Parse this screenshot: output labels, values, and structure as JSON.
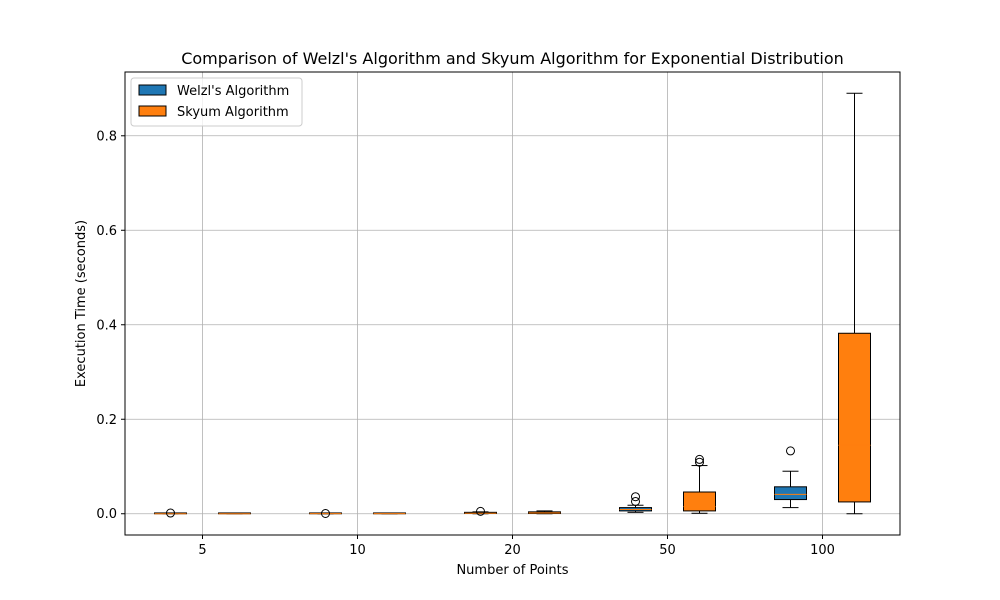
{
  "chart_data": {
    "type": "boxplot",
    "title": "Comparison of Welzl's Algorithm and Skyum Algorithm for Exponential Distribution",
    "xlabel": "Number of Points",
    "ylabel": "Execution Time (seconds)",
    "categories": [
      "5",
      "10",
      "20",
      "50",
      "100"
    ],
    "ylim": [
      -0.045,
      0.935
    ],
    "yticks": [
      0.0,
      0.2,
      0.4,
      0.6,
      0.8
    ],
    "ytick_labels": [
      "0.0",
      "0.2",
      "0.4",
      "0.6",
      "0.8"
    ],
    "grid": true,
    "legend_position": "top-left",
    "series": [
      {
        "name": "Welzl's Algorithm",
        "color": "#1f77b4",
        "boxes": [
          {
            "whisker_low": 0.0,
            "q1": 0.0,
            "median": 0.0,
            "q3": 0.0005,
            "whisker_high": 0.0008,
            "outliers": [
              0.0015
            ]
          },
          {
            "whisker_low": 0.0,
            "q1": 0.0,
            "median": 0.0003,
            "q3": 0.0008,
            "whisker_high": 0.001,
            "outliers": [
              0.0005
            ]
          },
          {
            "whisker_low": 0.0,
            "q1": 0.0005,
            "median": 0.001,
            "q3": 0.003,
            "whisker_high": 0.004,
            "outliers": [
              0.005
            ]
          },
          {
            "whisker_low": 0.003,
            "q1": 0.006,
            "median": 0.009,
            "q3": 0.013,
            "whisker_high": 0.018,
            "outliers": [
              0.026,
              0.036
            ]
          },
          {
            "whisker_low": 0.013,
            "q1": 0.03,
            "median": 0.041,
            "q3": 0.057,
            "whisker_high": 0.09,
            "outliers": [
              0.133
            ]
          }
        ]
      },
      {
        "name": "Skyum Algorithm",
        "color": "#ff7f0e",
        "boxes": [
          {
            "whisker_low": 0.0,
            "q1": 0.0,
            "median": 0.0,
            "q3": 0.0005,
            "whisker_high": 0.0008,
            "outliers": []
          },
          {
            "whisker_low": 0.0,
            "q1": 0.0,
            "median": 0.0003,
            "q3": 0.0008,
            "whisker_high": 0.001,
            "outliers": []
          },
          {
            "whisker_low": 0.0,
            "q1": 0.0005,
            "median": 0.0015,
            "q3": 0.004,
            "whisker_high": 0.006,
            "outliers": []
          },
          {
            "whisker_low": 0.001,
            "q1": 0.006,
            "median": 0.015,
            "q3": 0.046,
            "whisker_high": 0.102,
            "outliers": [
              0.109,
              0.115
            ]
          },
          {
            "whisker_low": 0.0,
            "q1": 0.025,
            "median": 0.145,
            "q3": 0.382,
            "whisker_high": 0.89,
            "outliers": []
          }
        ]
      }
    ]
  }
}
